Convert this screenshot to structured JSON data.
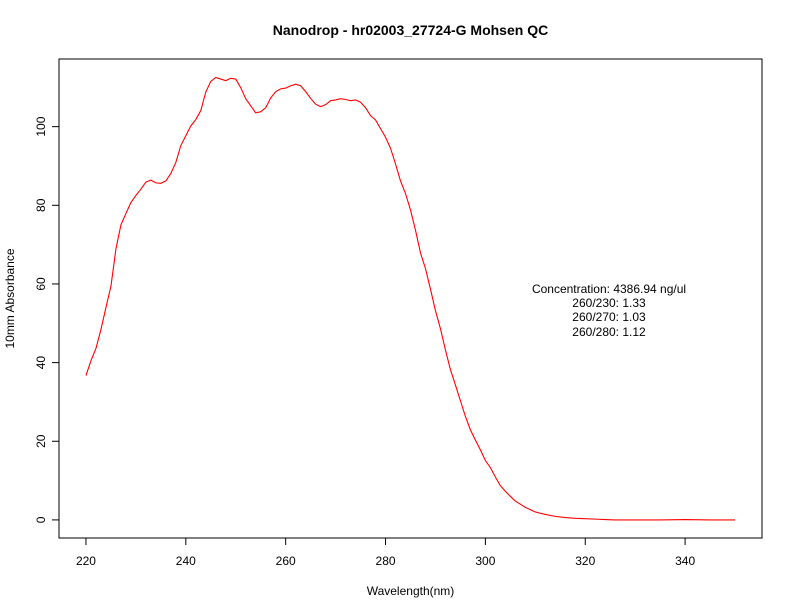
{
  "chart_data": {
    "type": "line",
    "title": "Nanodrop - hr02003_27724-G Mohsen QC",
    "xlabel": "Wavelength(nm)",
    "ylabel": "10mm Absorbance",
    "xlim": [
      214.6,
      355.4
    ],
    "ylim": [
      -4.6,
      117.2
    ],
    "x_ticks": [
      220,
      240,
      260,
      280,
      300,
      320,
      340
    ],
    "y_ticks": [
      0,
      20,
      40,
      60,
      80,
      100
    ],
    "grid": false,
    "line_color": "#ff0000",
    "series": [
      {
        "x": [
          220,
          221,
          222,
          223,
          224,
          225,
          226,
          227,
          228,
          229,
          230,
          231,
          232,
          233,
          234,
          235,
          236,
          237,
          238,
          239,
          240,
          241,
          242,
          243,
          244,
          245,
          246,
          247,
          248,
          249,
          250,
          251,
          252,
          253,
          254,
          255,
          256,
          257,
          258,
          259,
          260,
          261,
          262,
          263,
          264,
          265,
          266,
          267,
          268,
          269,
          270,
          271,
          272,
          273,
          274,
          275,
          276,
          277,
          278,
          279,
          280,
          281,
          282,
          283,
          284,
          285,
          286,
          287,
          288,
          289,
          290,
          291,
          292,
          293,
          294,
          295,
          296,
          297,
          298,
          299,
          300,
          301,
          302,
          303,
          304,
          305,
          306,
          307,
          308,
          309,
          310,
          312,
          314,
          316,
          318,
          320,
          322,
          324,
          326,
          328,
          330,
          335,
          340,
          345,
          350
        ],
        "y": [
          36.7,
          40.5,
          43.6,
          48.4,
          54.0,
          59.4,
          68.9,
          75.0,
          77.9,
          80.7,
          82.5,
          84.1,
          85.9,
          86.4,
          85.7,
          85.6,
          86.2,
          88.1,
          90.9,
          95.2,
          97.7,
          100.2,
          101.8,
          104.1,
          108.8,
          111.5,
          112.5,
          112.1,
          111.7,
          112.3,
          112.1,
          109.9,
          107.1,
          105.3,
          103.5,
          103.8,
          104.8,
          107.3,
          108.9,
          109.6,
          109.8,
          110.4,
          110.8,
          110.4,
          108.9,
          107.2,
          105.7,
          105.1,
          105.6,
          106.6,
          106.8,
          107.1,
          106.9,
          106.6,
          106.8,
          106.2,
          104.8,
          102.8,
          101.7,
          99.5,
          97.3,
          94.5,
          90.5,
          86.2,
          83.0,
          78.8,
          73.7,
          67.9,
          63.9,
          58.7,
          53.2,
          48.6,
          43.2,
          38.2,
          34.3,
          30.3,
          26.3,
          22.9,
          20.3,
          17.8,
          15.1,
          13.3,
          10.9,
          8.7,
          7.3,
          6.0,
          4.8,
          4.0,
          3.2,
          2.6,
          2.0,
          1.4,
          0.9,
          0.6,
          0.4,
          0.3,
          0.2,
          0.1,
          0.0,
          0.0,
          0.0,
          0.0,
          0.1,
          0.0,
          0.0
        ]
      }
    ],
    "annotations": [
      "Concentration: 4386.94 ng/ul",
      "260/230: 1.33",
      "260/270: 1.03",
      "260/280: 1.12"
    ]
  }
}
